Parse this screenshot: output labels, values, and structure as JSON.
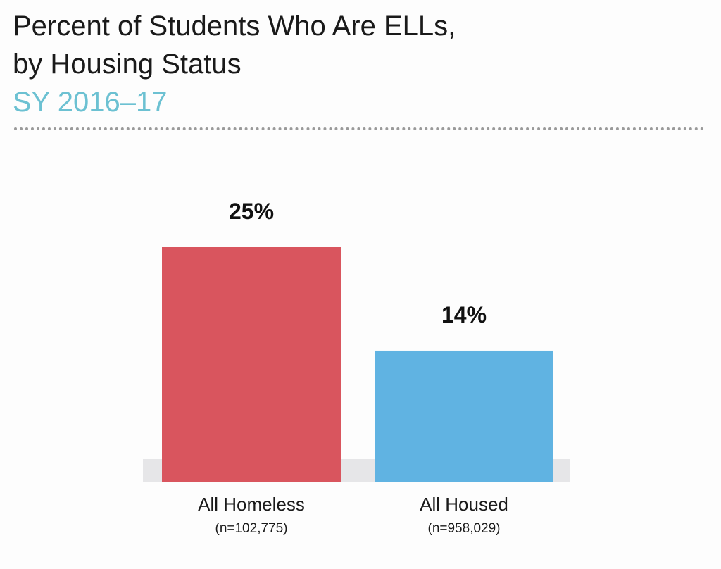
{
  "header": {
    "title_line1": "Percent of Students Who Are ELLs,",
    "title_line2": "by Housing Status",
    "subtitle": "SY 2016–17"
  },
  "chart_data": {
    "type": "bar",
    "categories": [
      "All Homeless",
      "All Housed"
    ],
    "category_notes": [
      "(n=102,775)",
      "(n=958,029)"
    ],
    "values": [
      25,
      14
    ],
    "value_labels": [
      "25%",
      "14%"
    ],
    "colors": [
      "#d9555e",
      "#60b3e2"
    ],
    "baseline_color": "#e6e6e8",
    "ylim": [
      0,
      30
    ],
    "xlabel": "",
    "ylabel": ""
  }
}
